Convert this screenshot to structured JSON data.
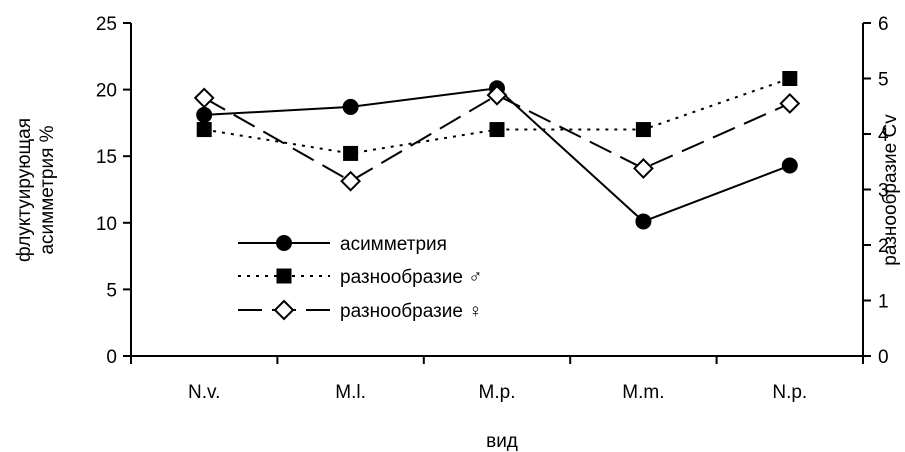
{
  "chart_data": {
    "type": "line",
    "categories": [
      "N.v.",
      "M.l.",
      "M.p.",
      "M.m.",
      "N.p."
    ],
    "xlabel": "вид",
    "ylabel_left_lines": [
      "флуктуирующая",
      "асимметрия %"
    ],
    "ylabel_right": "разнообразие Cv",
    "ylim_left": [
      0,
      25
    ],
    "ylim_right": [
      0,
      6
    ],
    "yticks_left": [
      "0",
      "5",
      "10",
      "15",
      "20",
      "25"
    ],
    "yticks_right": [
      "0",
      "1",
      "2",
      "3",
      "4",
      "5",
      "6"
    ],
    "grid": false,
    "legend_position": "center-left",
    "series": [
      {
        "name": "асимметрия",
        "axis": "left",
        "style": "solid",
        "marker": "circle",
        "color": "#000000",
        "values": [
          18.1,
          18.7,
          20.1,
          10.1,
          14.3
        ]
      },
      {
        "name": "разнообразие ♂",
        "axis": "right",
        "style": "dotted",
        "marker": "square",
        "color": "#000000",
        "values": [
          4.08,
          3.65,
          4.08,
          4.08,
          5.0
        ]
      },
      {
        "name": "разнообразие ♀",
        "axis": "right",
        "style": "dashed",
        "marker": "diamond",
        "color": "#000000",
        "values": [
          4.65,
          3.15,
          4.7,
          3.38,
          4.55
        ]
      }
    ]
  }
}
